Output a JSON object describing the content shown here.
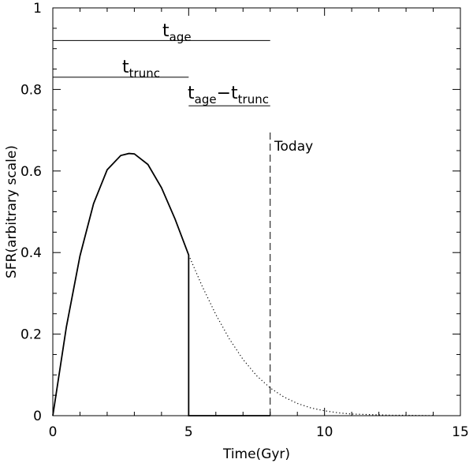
{
  "chart_data": {
    "type": "line",
    "title": "",
    "xlabel": "Time(Gyr)",
    "ylabel": "SFR(arbitrary scale)",
    "xlim": [
      0,
      15
    ],
    "ylim": [
      0,
      1
    ],
    "x_ticks": [
      0,
      5,
      10,
      15
    ],
    "x_tick_labels": [
      "0",
      "5",
      "10",
      "15"
    ],
    "y_ticks": [
      0,
      0.2,
      0.4,
      0.6,
      0.8,
      1
    ],
    "y_tick_labels": [
      "0",
      "0.2",
      "0.4",
      "0.6",
      "0.8",
      "1"
    ],
    "grid": false,
    "series": [
      {
        "style": "solid",
        "x": [
          0,
          0.5,
          1,
          1.5,
          2,
          2.5,
          2.8,
          3,
          3.5,
          4,
          4.5,
          5
        ],
        "y": [
          0,
          0.218,
          0.392,
          0.52,
          0.603,
          0.638,
          0.643,
          0.642,
          0.616,
          0.559,
          0.482,
          0.394
        ]
      },
      {
        "style": "solid",
        "x": [
          5,
          5,
          8
        ],
        "y": [
          0.394,
          0,
          0
        ]
      },
      {
        "style": "dotted",
        "x": [
          5,
          5.5,
          6,
          6.5,
          7,
          7.5,
          8,
          8.5,
          9,
          9.5,
          10,
          10.5,
          11,
          11.5,
          12,
          12.5,
          13,
          13.5,
          14
        ],
        "y": [
          0.394,
          0.317,
          0.248,
          0.188,
          0.138,
          0.098,
          0.068,
          0.046,
          0.03,
          0.019,
          0.012,
          0.007,
          0.004,
          0.003,
          0.002,
          0.001,
          0.001,
          0.0005,
          0.0003
        ]
      }
    ],
    "annotations": {
      "tage": {
        "base": "t",
        "sub": "age"
      },
      "ttrunc": {
        "base": "t",
        "sub": "trunc"
      },
      "diff": {
        "base1": "t",
        "sub1": "age",
        "minus": "−",
        "base2": "t",
        "sub2": "trunc"
      },
      "today": "Today"
    },
    "ranges": {
      "tage": {
        "x": [
          0,
          8
        ],
        "y": 0.92
      },
      "ttrunc": {
        "x": [
          0,
          5
        ],
        "y": 0.83
      },
      "diff": {
        "x": [
          5,
          8
        ],
        "y": 0.76
      },
      "today": {
        "x": 8,
        "y": [
          0,
          0.7
        ]
      }
    }
  }
}
